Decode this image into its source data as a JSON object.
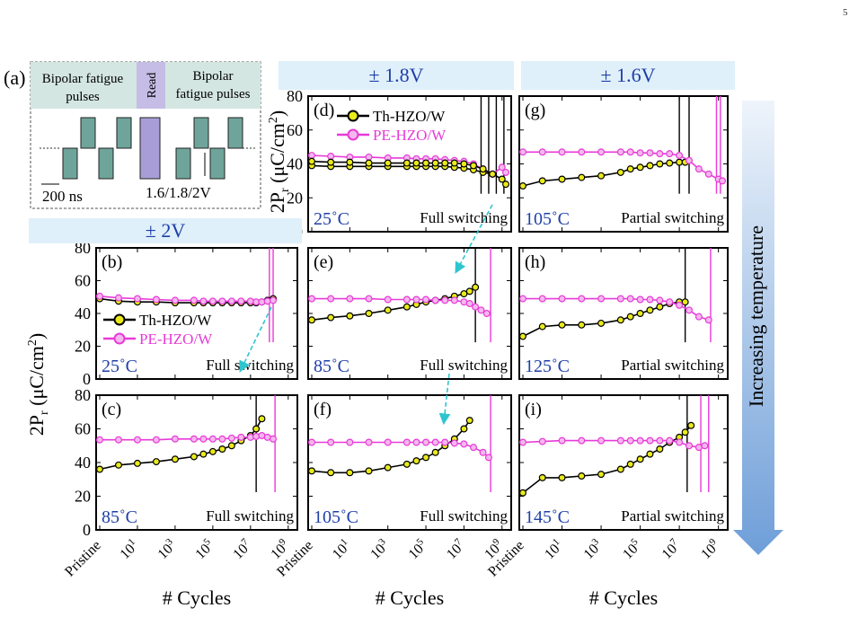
{
  "page_number": "5",
  "panel_a": {
    "label": "(a)",
    "seg_left": "Bipolar fatigue pulses",
    "seg_read": "Read",
    "seg_right": "Bipolar fatigue pulses",
    "pulse_width": "200 ns",
    "amplitude": "1.6/1.8/2V"
  },
  "bands": {
    "v2": "± 2V",
    "v18": "± 1.8V",
    "v16": "± 1.6V"
  },
  "side_label": "Increasing temperature",
  "x_title": "# Cycles",
  "y_title": "2P",
  "y_title_sub": "r",
  "y_title_unit": " (μC/cm",
  "y_title_sup": "2",
  "y_title_end": ")",
  "x_tick_labels": [
    "Pristine",
    "10",
    "10",
    "10",
    "10",
    "10"
  ],
  "x_tick_sups": [
    "",
    "1",
    "3",
    "5",
    "7",
    "9"
  ],
  "colors": {
    "th": "#000000",
    "pe": "#e83ad8",
    "th_marker": "#e9ea1a",
    "pe_marker": "#f3b8ec",
    "temp": "#1f3fa8",
    "dashed_arrow": "#2ec5cf",
    "band_bg": "#dff0fa",
    "side_arrow": "#6e9ed8"
  },
  "chart_data": [
    {
      "type": "line",
      "panel": "(b)",
      "temperature": "25˚C",
      "mode": "Full switching",
      "xlim": [
        -1,
        9.2
      ],
      "ylim": [
        0,
        80
      ],
      "yticks": [
        0,
        20,
        40,
        60,
        80
      ],
      "legend": [
        "Th-HZO/W",
        "PE-HZO/W"
      ],
      "legend_position": "center-left",
      "series": [
        {
          "name": "Th-HZO/W",
          "x": [
            -1,
            0,
            1,
            2,
            3,
            4,
            4.5,
            5,
            5.5,
            6,
            6.5,
            7,
            7.3,
            7.6,
            7.9,
            8.2
          ],
          "y": [
            49,
            47.5,
            47,
            47,
            46.5,
            46.5,
            46.5,
            46.5,
            46.5,
            46.5,
            46.5,
            46.5,
            46.5,
            47,
            48,
            49
          ]
        },
        {
          "name": "PE-HZO/W",
          "x": [
            -1,
            0,
            1,
            2,
            3,
            4,
            4.5,
            5,
            5.5,
            6,
            6.5,
            7,
            7.3,
            7.6,
            7.9,
            8.2
          ],
          "y": [
            50.5,
            49.5,
            49,
            48.5,
            48,
            48,
            47.5,
            47.5,
            47.5,
            47.5,
            47.5,
            47.5,
            47,
            47,
            47.5,
            48
          ]
        }
      ]
    },
    {
      "type": "line",
      "panel": "(c)",
      "temperature": "85˚C",
      "mode": "Full switching",
      "xlim": [
        -1,
        9.2
      ],
      "ylim": [
        0,
        80
      ],
      "yticks": [
        0,
        20,
        40,
        60,
        80
      ],
      "series": [
        {
          "name": "Th-HZO/W",
          "x": [
            -1,
            0,
            1,
            2,
            3,
            4,
            4.5,
            5,
            5.5,
            6,
            6.5,
            7,
            7.3,
            7.6
          ],
          "y": [
            36,
            38.5,
            39.5,
            40.5,
            42,
            43.5,
            45,
            46.5,
            48,
            50,
            53,
            56,
            60,
            66
          ]
        },
        {
          "name": "PE-HZO/W",
          "x": [
            -1,
            0,
            1,
            2,
            3,
            4,
            4.5,
            5,
            5.5,
            6,
            6.5,
            7,
            7.3,
            7.6,
            7.9,
            8.2
          ],
          "y": [
            53.5,
            53.5,
            53.5,
            53.5,
            54,
            54,
            54,
            54,
            54,
            54.5,
            55,
            55,
            55.5,
            56,
            55,
            54
          ]
        }
      ]
    },
    {
      "type": "line",
      "panel": "(d)",
      "temperature": "25˚C",
      "mode": "Full switching",
      "xlim": [
        -1,
        9.2
      ],
      "ylim": [
        0,
        80
      ],
      "yticks": [
        0,
        20,
        40,
        60,
        80
      ],
      "legend": [
        "Th-HZO/W",
        "PE-HZO/W"
      ],
      "legend_position": "top-left",
      "series": [
        {
          "name": "Th-HZO/W",
          "x": [
            -1,
            0,
            1,
            2,
            3,
            4,
            4.5,
            5,
            5.5,
            6,
            6.5,
            7,
            7.5,
            8,
            8.5,
            9,
            9.2
          ],
          "y": [
            39,
            38.5,
            38.5,
            38.5,
            38.5,
            38.5,
            38.5,
            38.5,
            38.5,
            38.5,
            38,
            37.5,
            36.5,
            35,
            34,
            31,
            28
          ]
        },
        {
          "name": "PE-HZO/W",
          "x": [
            -1,
            0,
            1,
            2,
            3,
            4,
            4.5,
            5,
            5.5,
            6,
            6.5,
            7,
            7.5,
            8,
            8.5,
            9,
            9.2
          ],
          "y": [
            45,
            44.5,
            44,
            44,
            43.5,
            43.5,
            43,
            43,
            43,
            42.5,
            42,
            41.5,
            40,
            37,
            34,
            38,
            35
          ]
        },
        {
          "name": "",
          "x": [
            -1,
            0,
            1,
            2,
            3,
            4,
            4.5,
            5,
            5.5,
            6,
            6.5,
            7,
            7.5,
            8,
            8.5
          ],
          "y": [
            41.5,
            41,
            41,
            40.5,
            40.5,
            40.5,
            40.5,
            40.5,
            40.5,
            40.5,
            40.5,
            40,
            39,
            37,
            34
          ]
        }
      ]
    },
    {
      "type": "line",
      "panel": "(e)",
      "temperature": "85˚C",
      "mode": "Full switching",
      "xlim": [
        -1,
        9.2
      ],
      "ylim": [
        0,
        80
      ],
      "yticks": [
        0,
        20,
        40,
        60,
        80
      ],
      "series": [
        {
          "name": "Th-HZO/W",
          "x": [
            -1,
            0,
            1,
            2,
            3,
            4,
            4.5,
            5,
            5.5,
            6,
            6.5,
            7,
            7.3,
            7.6
          ],
          "y": [
            36,
            37.5,
            38.5,
            40,
            42,
            44,
            45.5,
            47,
            48,
            49,
            50.5,
            52,
            53.5,
            56
          ]
        },
        {
          "name": "PE-HZO/W",
          "x": [
            -1,
            0,
            1,
            2,
            3,
            4,
            4.5,
            5,
            5.5,
            6,
            6.5,
            7,
            7.3,
            7.6,
            7.9,
            8.2
          ],
          "y": [
            49,
            49,
            49,
            49,
            48.5,
            48.5,
            48.5,
            48.5,
            48,
            48,
            48,
            47,
            46,
            44,
            42,
            40
          ]
        }
      ]
    },
    {
      "type": "line",
      "panel": "(f)",
      "temperature": "105˚C",
      "mode": "Full switching",
      "xlim": [
        -1,
        9.2
      ],
      "ylim": [
        0,
        80
      ],
      "yticks": [
        0,
        20,
        40,
        60,
        80
      ],
      "series": [
        {
          "name": "Th-HZO/W",
          "x": [
            -1,
            0,
            1,
            2,
            3,
            4,
            4.5,
            5,
            5.5,
            6,
            6.5,
            7,
            7.3
          ],
          "y": [
            35,
            34,
            34,
            35,
            37,
            39,
            41,
            43,
            46,
            50,
            54,
            60,
            65
          ]
        },
        {
          "name": "PE-HZO/W",
          "x": [
            -1,
            0,
            1,
            2,
            3,
            4,
            4.5,
            5,
            5.5,
            6,
            6.5,
            7,
            7.5,
            8,
            8.3
          ],
          "y": [
            52,
            52,
            52,
            52,
            52,
            52,
            52,
            52,
            52,
            52,
            51.5,
            51,
            49,
            46,
            43
          ]
        }
      ]
    },
    {
      "type": "line",
      "panel": "(g)",
      "temperature": "105˚C",
      "mode": "Partial switching",
      "xlim": [
        -1,
        9.2
      ],
      "ylim": [
        0,
        80
      ],
      "yticks": [
        0,
        20,
        40,
        60,
        80
      ],
      "series": [
        {
          "name": "Th-HZO/W",
          "x": [
            -1,
            0,
            1,
            2,
            3,
            4,
            4.5,
            5,
            5.5,
            6,
            6.5,
            7,
            7.3
          ],
          "y": [
            27,
            30,
            31,
            32,
            33,
            35,
            37,
            38,
            39,
            40,
            40.5,
            41,
            41
          ]
        },
        {
          "name": "PE-HZO/W",
          "x": [
            -1,
            0,
            1,
            2,
            3,
            4,
            4.5,
            5,
            5.5,
            6,
            6.5,
            7,
            7.5,
            8,
            8.5,
            9,
            9.2
          ],
          "y": [
            47,
            47,
            47,
            47,
            47,
            47,
            47,
            46.5,
            46.5,
            46,
            46,
            45,
            42,
            37,
            34,
            31,
            30
          ]
        }
      ]
    },
    {
      "type": "line",
      "panel": "(h)",
      "temperature": "125˚C",
      "mode": "Partial switching",
      "xlim": [
        -1,
        9.2
      ],
      "ylim": [
        0,
        80
      ],
      "yticks": [
        0,
        20,
        40,
        60,
        80
      ],
      "series": [
        {
          "name": "Th-HZO/W",
          "x": [
            -1,
            0,
            1,
            2,
            3,
            4,
            4.5,
            5,
            5.5,
            6,
            6.5,
            7,
            7.3
          ],
          "y": [
            26,
            32,
            33,
            33,
            34,
            36,
            38,
            40,
            42,
            44,
            46,
            47,
            47
          ]
        },
        {
          "name": "PE-HZO/W",
          "x": [
            -1,
            0,
            1,
            2,
            3,
            4,
            4.5,
            5,
            5.5,
            6,
            6.5,
            7,
            7.5,
            8,
            8.5
          ],
          "y": [
            49,
            49,
            49,
            49,
            49,
            49,
            49,
            48.5,
            48.5,
            48,
            47,
            45,
            42,
            38,
            36
          ]
        }
      ]
    },
    {
      "type": "line",
      "panel": "(i)",
      "temperature": "145˚C",
      "mode": "Partial switching",
      "xlim": [
        -1,
        9.2
      ],
      "ylim": [
        0,
        80
      ],
      "yticks": [
        0,
        20,
        40,
        60,
        80
      ],
      "series": [
        {
          "name": "Th-HZO/W",
          "x": [
            -1,
            0,
            1,
            2,
            3,
            4,
            4.5,
            5,
            5.5,
            6,
            6.5,
            7,
            7.3,
            7.6
          ],
          "y": [
            22,
            31,
            31,
            32,
            33,
            36,
            39,
            42,
            45,
            48,
            52,
            55,
            58,
            62
          ]
        },
        {
          "name": "PE-HZO/W",
          "x": [
            -1,
            0,
            1,
            2,
            3,
            4,
            4.5,
            5,
            5.5,
            6,
            6.5,
            7,
            7.5,
            8,
            8.3
          ],
          "y": [
            52,
            52.5,
            53,
            53,
            53,
            53,
            53,
            53,
            53,
            53,
            53,
            52,
            50,
            49,
            50
          ]
        }
      ]
    }
  ]
}
